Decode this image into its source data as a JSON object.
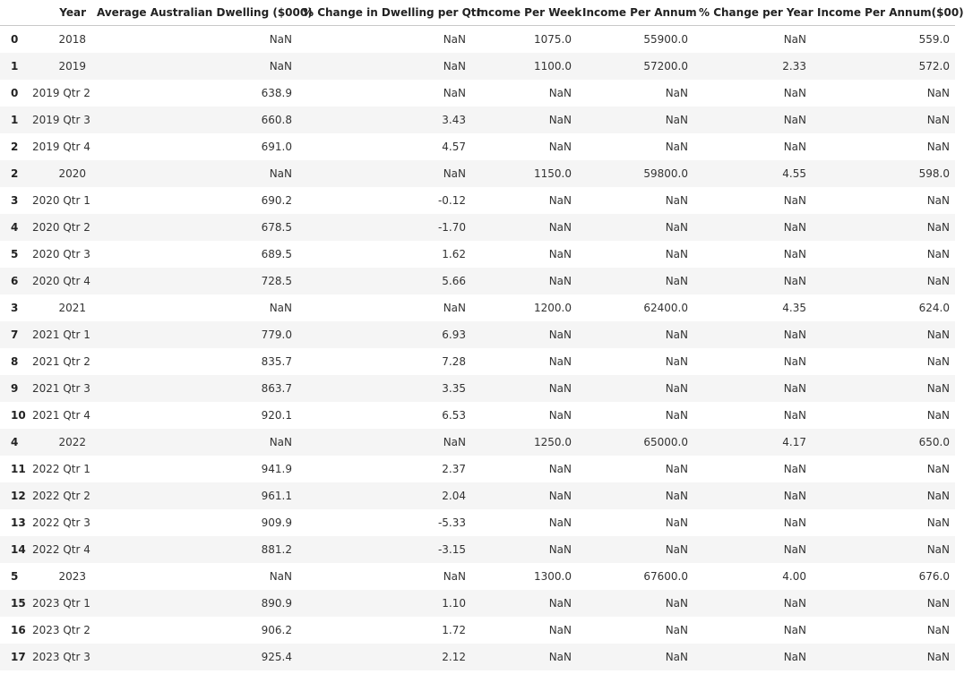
{
  "table": {
    "columns": [
      "",
      "Year",
      "Average Australian Dwelling ($000)",
      "% Change in Dwelling per Qtr",
      "Income Per Week",
      "Income Per Annum",
      "% Change per Year",
      "Income Per Annum($00)"
    ],
    "rows": [
      [
        "0",
        "2018",
        "NaN",
        "NaN",
        "1075.0",
        "55900.0",
        "NaN",
        "559.0"
      ],
      [
        "1",
        "2019",
        "NaN",
        "NaN",
        "1100.0",
        "57200.0",
        "2.33",
        "572.0"
      ],
      [
        "0",
        "2019 Qtr 2",
        "638.9",
        "NaN",
        "NaN",
        "NaN",
        "NaN",
        "NaN"
      ],
      [
        "1",
        "2019 Qtr 3",
        "660.8",
        "3.43",
        "NaN",
        "NaN",
        "NaN",
        "NaN"
      ],
      [
        "2",
        "2019 Qtr 4",
        "691.0",
        "4.57",
        "NaN",
        "NaN",
        "NaN",
        "NaN"
      ],
      [
        "2",
        "2020",
        "NaN",
        "NaN",
        "1150.0",
        "59800.0",
        "4.55",
        "598.0"
      ],
      [
        "3",
        "2020 Qtr 1",
        "690.2",
        "-0.12",
        "NaN",
        "NaN",
        "NaN",
        "NaN"
      ],
      [
        "4",
        "2020 Qtr 2",
        "678.5",
        "-1.70",
        "NaN",
        "NaN",
        "NaN",
        "NaN"
      ],
      [
        "5",
        "2020 Qtr 3",
        "689.5",
        "1.62",
        "NaN",
        "NaN",
        "NaN",
        "NaN"
      ],
      [
        "6",
        "2020 Qtr 4",
        "728.5",
        "5.66",
        "NaN",
        "NaN",
        "NaN",
        "NaN"
      ],
      [
        "3",
        "2021",
        "NaN",
        "NaN",
        "1200.0",
        "62400.0",
        "4.35",
        "624.0"
      ],
      [
        "7",
        "2021 Qtr 1",
        "779.0",
        "6.93",
        "NaN",
        "NaN",
        "NaN",
        "NaN"
      ],
      [
        "8",
        "2021 Qtr 2",
        "835.7",
        "7.28",
        "NaN",
        "NaN",
        "NaN",
        "NaN"
      ],
      [
        "9",
        "2021 Qtr 3",
        "863.7",
        "3.35",
        "NaN",
        "NaN",
        "NaN",
        "NaN"
      ],
      [
        "10",
        "2021 Qtr 4",
        "920.1",
        "6.53",
        "NaN",
        "NaN",
        "NaN",
        "NaN"
      ],
      [
        "4",
        "2022",
        "NaN",
        "NaN",
        "1250.0",
        "65000.0",
        "4.17",
        "650.0"
      ],
      [
        "11",
        "2022 Qtr 1",
        "941.9",
        "2.37",
        "NaN",
        "NaN",
        "NaN",
        "NaN"
      ],
      [
        "12",
        "2022 Qtr 2",
        "961.1",
        "2.04",
        "NaN",
        "NaN",
        "NaN",
        "NaN"
      ],
      [
        "13",
        "2022 Qtr 3",
        "909.9",
        "-5.33",
        "NaN",
        "NaN",
        "NaN",
        "NaN"
      ],
      [
        "14",
        "2022 Qtr 4",
        "881.2",
        "-3.15",
        "NaN",
        "NaN",
        "NaN",
        "NaN"
      ],
      [
        "5",
        "2023",
        "NaN",
        "NaN",
        "1300.0",
        "67600.0",
        "4.00",
        "676.0"
      ],
      [
        "15",
        "2023 Qtr 1",
        "890.9",
        "1.10",
        "NaN",
        "NaN",
        "NaN",
        "NaN"
      ],
      [
        "16",
        "2023 Qtr 2",
        "906.2",
        "1.72",
        "NaN",
        "NaN",
        "NaN",
        "NaN"
      ],
      [
        "17",
        "2023 Qtr 3",
        "925.4",
        "2.12",
        "NaN",
        "NaN",
        "NaN",
        "NaN"
      ]
    ]
  }
}
